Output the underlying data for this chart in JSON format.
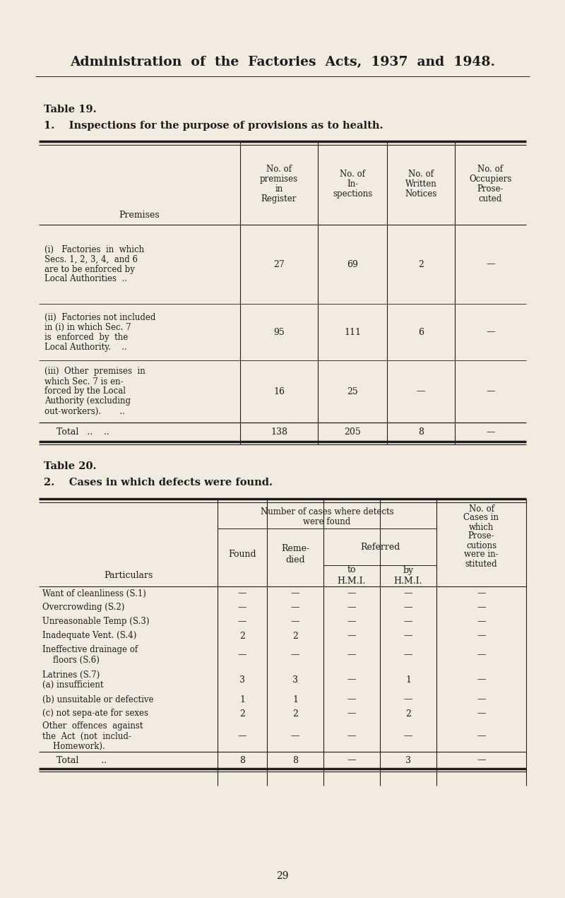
{
  "bg_color": "#f2ece0",
  "title": "Administration  of  the  Factories  Acts,  1937  and  1948.",
  "table19_label": "Table 19.",
  "table19_subtitle": "1.    Inspections for the purpose of provisions as to health.",
  "table20_label": "Table 20.",
  "table20_subtitle": "2.    Cases in which defects were found.",
  "page_number": "29",
  "t19_col_headers": [
    [
      "No. of",
      "premises",
      "in",
      "Register"
    ],
    [
      "No. of",
      "In-",
      "spections"
    ],
    [
      "No. of",
      "Written",
      "Notices"
    ],
    [
      "No. of",
      "Occupiers",
      "Prose-",
      "cuted"
    ]
  ],
  "t19_rows": [
    {
      "label_lines": [
        "(i)   Factories  in  which",
        "Secs. 1, 2, 3, 4,  and 6",
        "are to be enforced by",
        "Local Authorities  .."
      ],
      "values": [
        "27",
        "69",
        "2",
        "—"
      ]
    },
    {
      "label_lines": [
        "(ii)  Factories not included",
        "in (i) in which Sec. 7",
        "is  enforced  by  the",
        "Local Authority.    .."
      ],
      "values": [
        "95",
        "111",
        "6",
        "—"
      ]
    },
    {
      "label_lines": [
        "(iii)  Other  premises  in",
        "which Sec. 7 is en-",
        "forced by the Local",
        "Authority (excluding",
        "out-workers).       .."
      ],
      "values": [
        "16",
        "25",
        "—",
        "—"
      ]
    }
  ],
  "t19_total_label": "Total   ..    ..",
  "t19_total": [
    "138",
    "205",
    "8",
    "—"
  ],
  "t20_rows": [
    {
      "label_lines": [
        "Want of cleanliness (S.1)"
      ],
      "values": [
        "—",
        "—",
        "—",
        "—",
        "—"
      ]
    },
    {
      "label_lines": [
        "Overcrowding (S.2)"
      ],
      "values": [
        "—",
        "—",
        "—",
        "—",
        "—"
      ]
    },
    {
      "label_lines": [
        "Unreasonable Temp (S.3)"
      ],
      "values": [
        "—",
        "—",
        "—",
        "—",
        "—"
      ]
    },
    {
      "label_lines": [
        "Inadequate Vent. (S.4)"
      ],
      "values": [
        "2",
        "2",
        "—",
        "—",
        "—"
      ]
    },
    {
      "label_lines": [
        "Ineffective drainage of",
        "    floors (S.6)"
      ],
      "values": [
        "—",
        "—",
        "—",
        "—",
        "—"
      ]
    },
    {
      "label_lines": [
        "Latrines (S.7)",
        "(a) insufficient"
      ],
      "values": [
        "3",
        "3",
        "—",
        "1",
        "—"
      ]
    },
    {
      "label_lines": [
        "(b) unsuitable or defective"
      ],
      "values": [
        "1",
        "1",
        "—",
        "—",
        "—"
      ]
    },
    {
      "label_lines": [
        "(c) not sepa­ate for sexes"
      ],
      "values": [
        "2",
        "2",
        "—",
        "2",
        "—"
      ]
    },
    {
      "label_lines": [
        "Other  offences  against",
        "the  Act  (not  includ-",
        "    Homework)."
      ],
      "values": [
        "—",
        "—",
        "—",
        "—",
        "—"
      ]
    }
  ],
  "t20_total_label": "Total        ..",
  "t20_total": [
    "8",
    "8",
    "—",
    "3",
    "—"
  ]
}
